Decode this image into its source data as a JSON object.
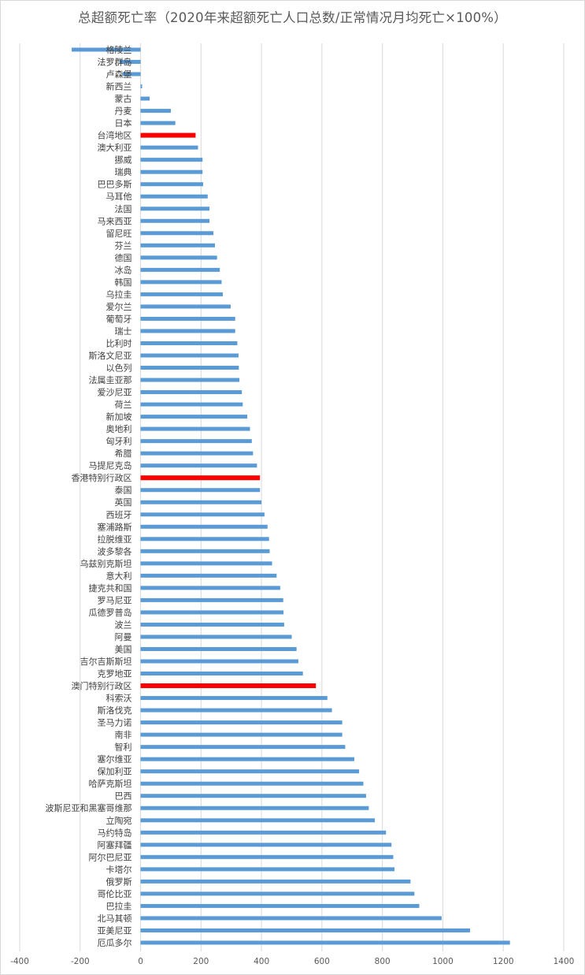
{
  "chart_data": {
    "type": "bar",
    "orientation": "horizontal",
    "title": "总超额死亡率（2020年来超额死亡人口总数/正常情况月均死亡×100%）",
    "xlim": [
      -400,
      1400
    ],
    "xticks": [
      -400,
      -200,
      0,
      200,
      400,
      600,
      800,
      1000,
      1200,
      1400
    ],
    "grid": true,
    "colors": {
      "default": "#5b9bd5",
      "highlight": "#ff0000"
    },
    "categories": [
      "格陵兰",
      "法罗群岛",
      "卢森堡",
      "新西兰",
      "蒙古",
      "丹麦",
      "日本",
      "台湾地区",
      "澳大利亚",
      "挪威",
      "瑞典",
      "巴巴多斯",
      "马耳他",
      "法国",
      "马来西亚",
      "留尼旺",
      "芬兰",
      "德国",
      "冰岛",
      "韩国",
      "乌拉圭",
      "爱尔兰",
      "葡萄牙",
      "瑞士",
      "比利时",
      "斯洛文尼亚",
      "以色列",
      "法属圭亚那",
      "爱沙尼亚",
      "荷兰",
      "新加坡",
      "奥地利",
      "匈牙利",
      "希腊",
      "马提尼克岛",
      "香港特别行政区",
      "泰国",
      "英国",
      "西班牙",
      "塞浦路斯",
      "拉脱维亚",
      "波多黎各",
      "乌兹别克斯坦",
      "意大利",
      "捷克共和国",
      "罗马尼亚",
      "瓜德罗普岛",
      "波兰",
      "阿曼",
      "美国",
      "吉尔吉斯斯坦",
      "克罗地亚",
      "澳门特别行政区",
      "科索沃",
      "斯洛伐克",
      "圣马力诺",
      "南非",
      "智利",
      "塞尔维亚",
      "保加利亚",
      "哈萨克斯坦",
      "巴西",
      "波斯尼亚和黑塞哥维那",
      "立陶宛",
      "马约特岛",
      "阿塞拜疆",
      "阿尔巴尼亚",
      "卡塔尔",
      "俄罗斯",
      "哥伦比亚",
      "巴拉圭",
      "北马其顿",
      "亚美尼亚",
      "厄瓜多尔"
    ],
    "values": [
      -228,
      -70,
      -60,
      5,
      30,
      100,
      115,
      182,
      190,
      205,
      205,
      207,
      222,
      228,
      228,
      241,
      246,
      253,
      262,
      268,
      272,
      298,
      313,
      313,
      320,
      324,
      325,
      327,
      335,
      338,
      353,
      362,
      368,
      372,
      385,
      395,
      395,
      400,
      410,
      420,
      425,
      427,
      435,
      450,
      462,
      472,
      473,
      475,
      500,
      516,
      522,
      537,
      580,
      618,
      633,
      667,
      667,
      677,
      707,
      723,
      737,
      746,
      755,
      775,
      812,
      830,
      836,
      840,
      893,
      906,
      922,
      996,
      1090,
      1222
    ],
    "highlighted": [
      "台湾地区",
      "香港特别行政区",
      "澳门特别行政区"
    ]
  }
}
